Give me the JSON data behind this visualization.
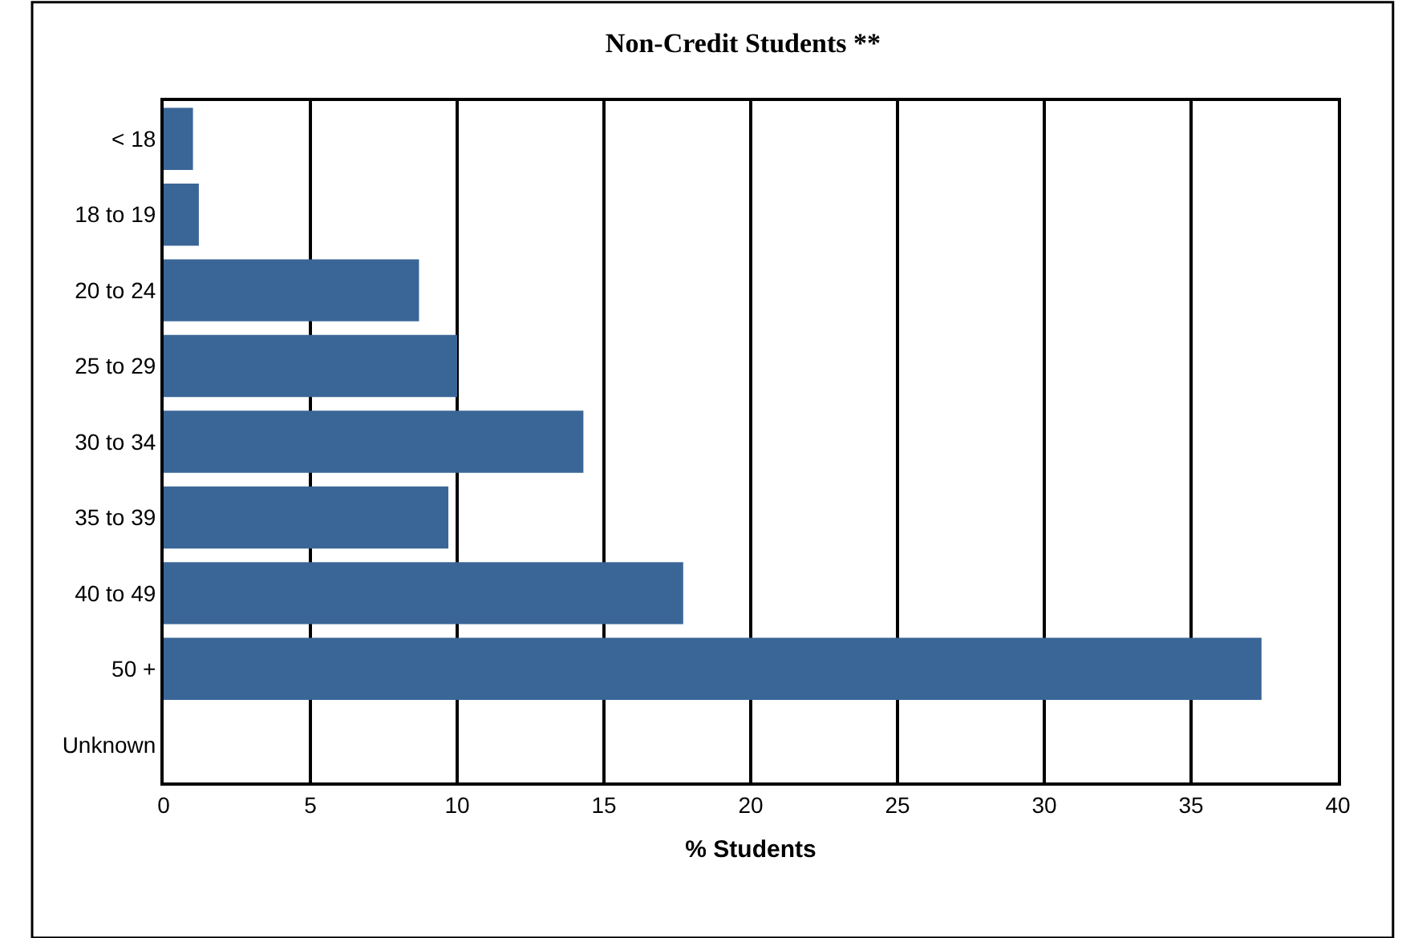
{
  "chart_data": {
    "type": "bar",
    "orientation": "horizontal",
    "title": "Non-Credit Students **",
    "xlabel": "% Students",
    "categories": [
      "< 18",
      "18 to 19",
      "20 to 24",
      "25 to 29",
      "30 to 34",
      "35 to 39",
      "40 to 49",
      "50 +",
      "Unknown"
    ],
    "values": [
      1.0,
      1.2,
      8.7,
      10.0,
      14.3,
      9.7,
      17.7,
      37.4,
      null
    ],
    "color": "#3a6697",
    "xlim": [
      0,
      40
    ],
    "xticks": [
      0,
      5,
      10,
      15,
      20,
      25,
      30,
      35,
      40
    ],
    "grid": "x",
    "legend": false
  }
}
